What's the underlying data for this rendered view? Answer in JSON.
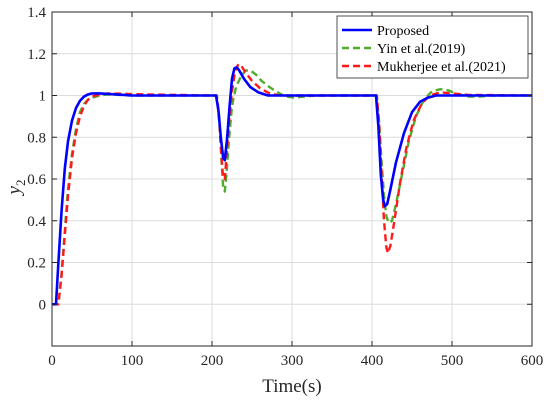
{
  "chart_data": {
    "type": "line",
    "title": "",
    "xlabel": "Time(s)",
    "ylabel": "y",
    "ylabel_subscript": "2",
    "xlim": [
      0,
      600
    ],
    "ylim": [
      -0.2,
      1.4
    ],
    "xticks": [
      0,
      100,
      200,
      300,
      400,
      500,
      600
    ],
    "yticks": [
      0,
      0.2,
      0.4,
      0.6,
      0.8,
      1,
      1.2,
      1.4
    ],
    "xtick_labels": [
      "0",
      "100",
      "200",
      "300",
      "400",
      "500",
      "600"
    ],
    "ytick_labels": [
      "0",
      "0.2",
      "0.4",
      "0.6",
      "0.8",
      "1",
      "1.2",
      "1.4"
    ],
    "grid": true,
    "legend_position": "top-right",
    "series": [
      {
        "name": "Proposed",
        "color": "#0000ff",
        "dash": "solid",
        "points": [
          [
            0,
            0
          ],
          [
            5,
            0
          ],
          [
            8,
            0.2
          ],
          [
            12,
            0.45
          ],
          [
            16,
            0.65
          ],
          [
            20,
            0.78
          ],
          [
            25,
            0.88
          ],
          [
            30,
            0.94
          ],
          [
            35,
            0.975
          ],
          [
            40,
            0.995
          ],
          [
            45,
            1.005
          ],
          [
            50,
            1.01
          ],
          [
            60,
            1.01
          ],
          [
            80,
            1.005
          ],
          [
            100,
            1.0
          ],
          [
            150,
            1.0
          ],
          [
            200,
            1.0
          ],
          [
            205,
            1.0
          ],
          [
            208,
            0.93
          ],
          [
            211,
            0.8
          ],
          [
            214,
            0.7
          ],
          [
            216,
            0.69
          ],
          [
            219,
            0.8
          ],
          [
            222,
            0.95
          ],
          [
            225,
            1.08
          ],
          [
            228,
            1.13
          ],
          [
            231,
            1.135
          ],
          [
            234,
            1.12
          ],
          [
            240,
            1.08
          ],
          [
            248,
            1.04
          ],
          [
            258,
            1.015
          ],
          [
            270,
            1.0
          ],
          [
            300,
            1.0
          ],
          [
            400,
            1.0
          ],
          [
            405,
            1.0
          ],
          [
            408,
            0.85
          ],
          [
            411,
            0.62
          ],
          [
            414,
            0.5
          ],
          [
            416,
            0.47
          ],
          [
            419,
            0.48
          ],
          [
            423,
            0.55
          ],
          [
            430,
            0.68
          ],
          [
            440,
            0.82
          ],
          [
            450,
            0.92
          ],
          [
            460,
            0.97
          ],
          [
            470,
            0.99
          ],
          [
            480,
            1.0
          ],
          [
            600,
            1.0
          ]
        ]
      },
      {
        "name": "Yin et al.(2019)",
        "color": "#4fac2e",
        "dash": "dashed",
        "points": [
          [
            0,
            0
          ],
          [
            8,
            0
          ],
          [
            12,
            0.15
          ],
          [
            16,
            0.35
          ],
          [
            20,
            0.55
          ],
          [
            25,
            0.72
          ],
          [
            30,
            0.84
          ],
          [
            35,
            0.92
          ],
          [
            40,
            0.96
          ],
          [
            45,
            0.98
          ],
          [
            50,
            0.99
          ],
          [
            60,
            1.0
          ],
          [
            70,
            1.005
          ],
          [
            100,
            1.0
          ],
          [
            150,
            1.0
          ],
          [
            200,
            1.0
          ],
          [
            206,
            1.0
          ],
          [
            209,
            0.9
          ],
          [
            212,
            0.68
          ],
          [
            214,
            0.56
          ],
          [
            216,
            0.54
          ],
          [
            218,
            0.62
          ],
          [
            221,
            0.78
          ],
          [
            225,
            0.95
          ],
          [
            230,
            1.04
          ],
          [
            236,
            1.09
          ],
          [
            242,
            1.12
          ],
          [
            248,
            1.12
          ],
          [
            255,
            1.1
          ],
          [
            262,
            1.07
          ],
          [
            272,
            1.04
          ],
          [
            282,
            1.015
          ],
          [
            292,
            0.995
          ],
          [
            302,
            0.99
          ],
          [
            315,
            0.995
          ],
          [
            330,
            1.0
          ],
          [
            400,
            1.0
          ],
          [
            406,
            1.0
          ],
          [
            409,
            0.87
          ],
          [
            412,
            0.68
          ],
          [
            415,
            0.52
          ],
          [
            418,
            0.42
          ],
          [
            421,
            0.39
          ],
          [
            425,
            0.4
          ],
          [
            430,
            0.48
          ],
          [
            438,
            0.63
          ],
          [
            446,
            0.78
          ],
          [
            455,
            0.9
          ],
          [
            465,
            0.98
          ],
          [
            475,
            1.02
          ],
          [
            485,
            1.03
          ],
          [
            495,
            1.025
          ],
          [
            505,
            1.01
          ],
          [
            520,
            0.995
          ],
          [
            535,
            0.995
          ],
          [
            550,
            1.0
          ],
          [
            600,
            1.0
          ]
        ]
      },
      {
        "name": "Mukherjee et al.(2021)",
        "color": "#ff1a1a",
        "dash": "dashed",
        "points": [
          [
            0,
            0
          ],
          [
            8,
            0
          ],
          [
            12,
            0.14
          ],
          [
            16,
            0.33
          ],
          [
            20,
            0.52
          ],
          [
            25,
            0.7
          ],
          [
            30,
            0.82
          ],
          [
            35,
            0.9
          ],
          [
            40,
            0.95
          ],
          [
            45,
            0.98
          ],
          [
            50,
            0.995
          ],
          [
            60,
            1.005
          ],
          [
            70,
            1.01
          ],
          [
            90,
            1.008
          ],
          [
            120,
            1.005
          ],
          [
            200,
            1.0
          ],
          [
            206,
            1.0
          ],
          [
            209,
            0.88
          ],
          [
            212,
            0.7
          ],
          [
            214,
            0.6
          ],
          [
            216,
            0.6
          ],
          [
            218,
            0.7
          ],
          [
            221,
            0.86
          ],
          [
            225,
            1.02
          ],
          [
            229,
            1.12
          ],
          [
            233,
            1.15
          ],
          [
            237,
            1.14
          ],
          [
            242,
            1.11
          ],
          [
            250,
            1.07
          ],
          [
            260,
            1.035
          ],
          [
            272,
            1.01
          ],
          [
            285,
            1.0
          ],
          [
            300,
            1.0
          ],
          [
            400,
            1.0
          ],
          [
            406,
            1.0
          ],
          [
            409,
            0.85
          ],
          [
            412,
            0.62
          ],
          [
            415,
            0.4
          ],
          [
            418,
            0.27
          ],
          [
            420,
            0.245
          ],
          [
            423,
            0.28
          ],
          [
            428,
            0.4
          ],
          [
            435,
            0.58
          ],
          [
            443,
            0.75
          ],
          [
            452,
            0.88
          ],
          [
            462,
            0.96
          ],
          [
            472,
            1.0
          ],
          [
            485,
            1.015
          ],
          [
            500,
            1.01
          ],
          [
            520,
            1.003
          ],
          [
            600,
            1.0
          ]
        ]
      }
    ]
  }
}
